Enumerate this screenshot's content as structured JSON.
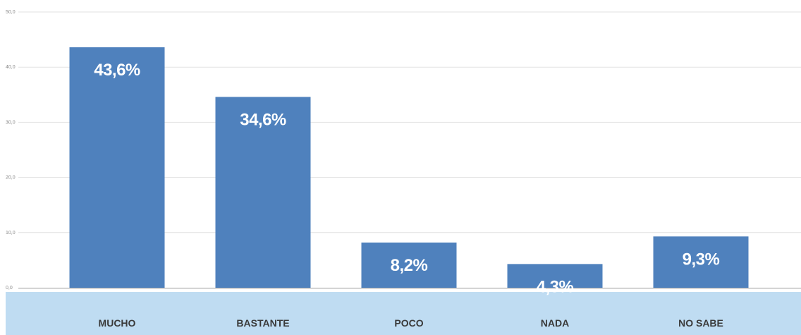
{
  "chart_data": {
    "type": "bar",
    "categories": [
      "MUCHO",
      "BASTANTE",
      "POCO",
      "NADA",
      "NO SABE"
    ],
    "values": [
      43.6,
      34.6,
      8.2,
      4.3,
      9.3
    ],
    "data_labels": [
      "43,6%",
      "34,6%",
      "8,2%",
      "4,3%",
      "9,3%"
    ],
    "y_ticks": [
      0,
      10,
      20,
      30,
      40,
      50
    ],
    "y_tick_labels": [
      "0,0",
      "10,0",
      "20,0",
      "30,0",
      "40,0",
      "50,0"
    ],
    "ylim": [
      0,
      50
    ],
    "grid": true,
    "title": "",
    "xlabel": "",
    "ylabel": "",
    "colors": {
      "bar": "#4f81bd",
      "category_band": "#bfdcf2",
      "grid": "#e2e2e2",
      "baseline": "#9a9a9a"
    }
  }
}
